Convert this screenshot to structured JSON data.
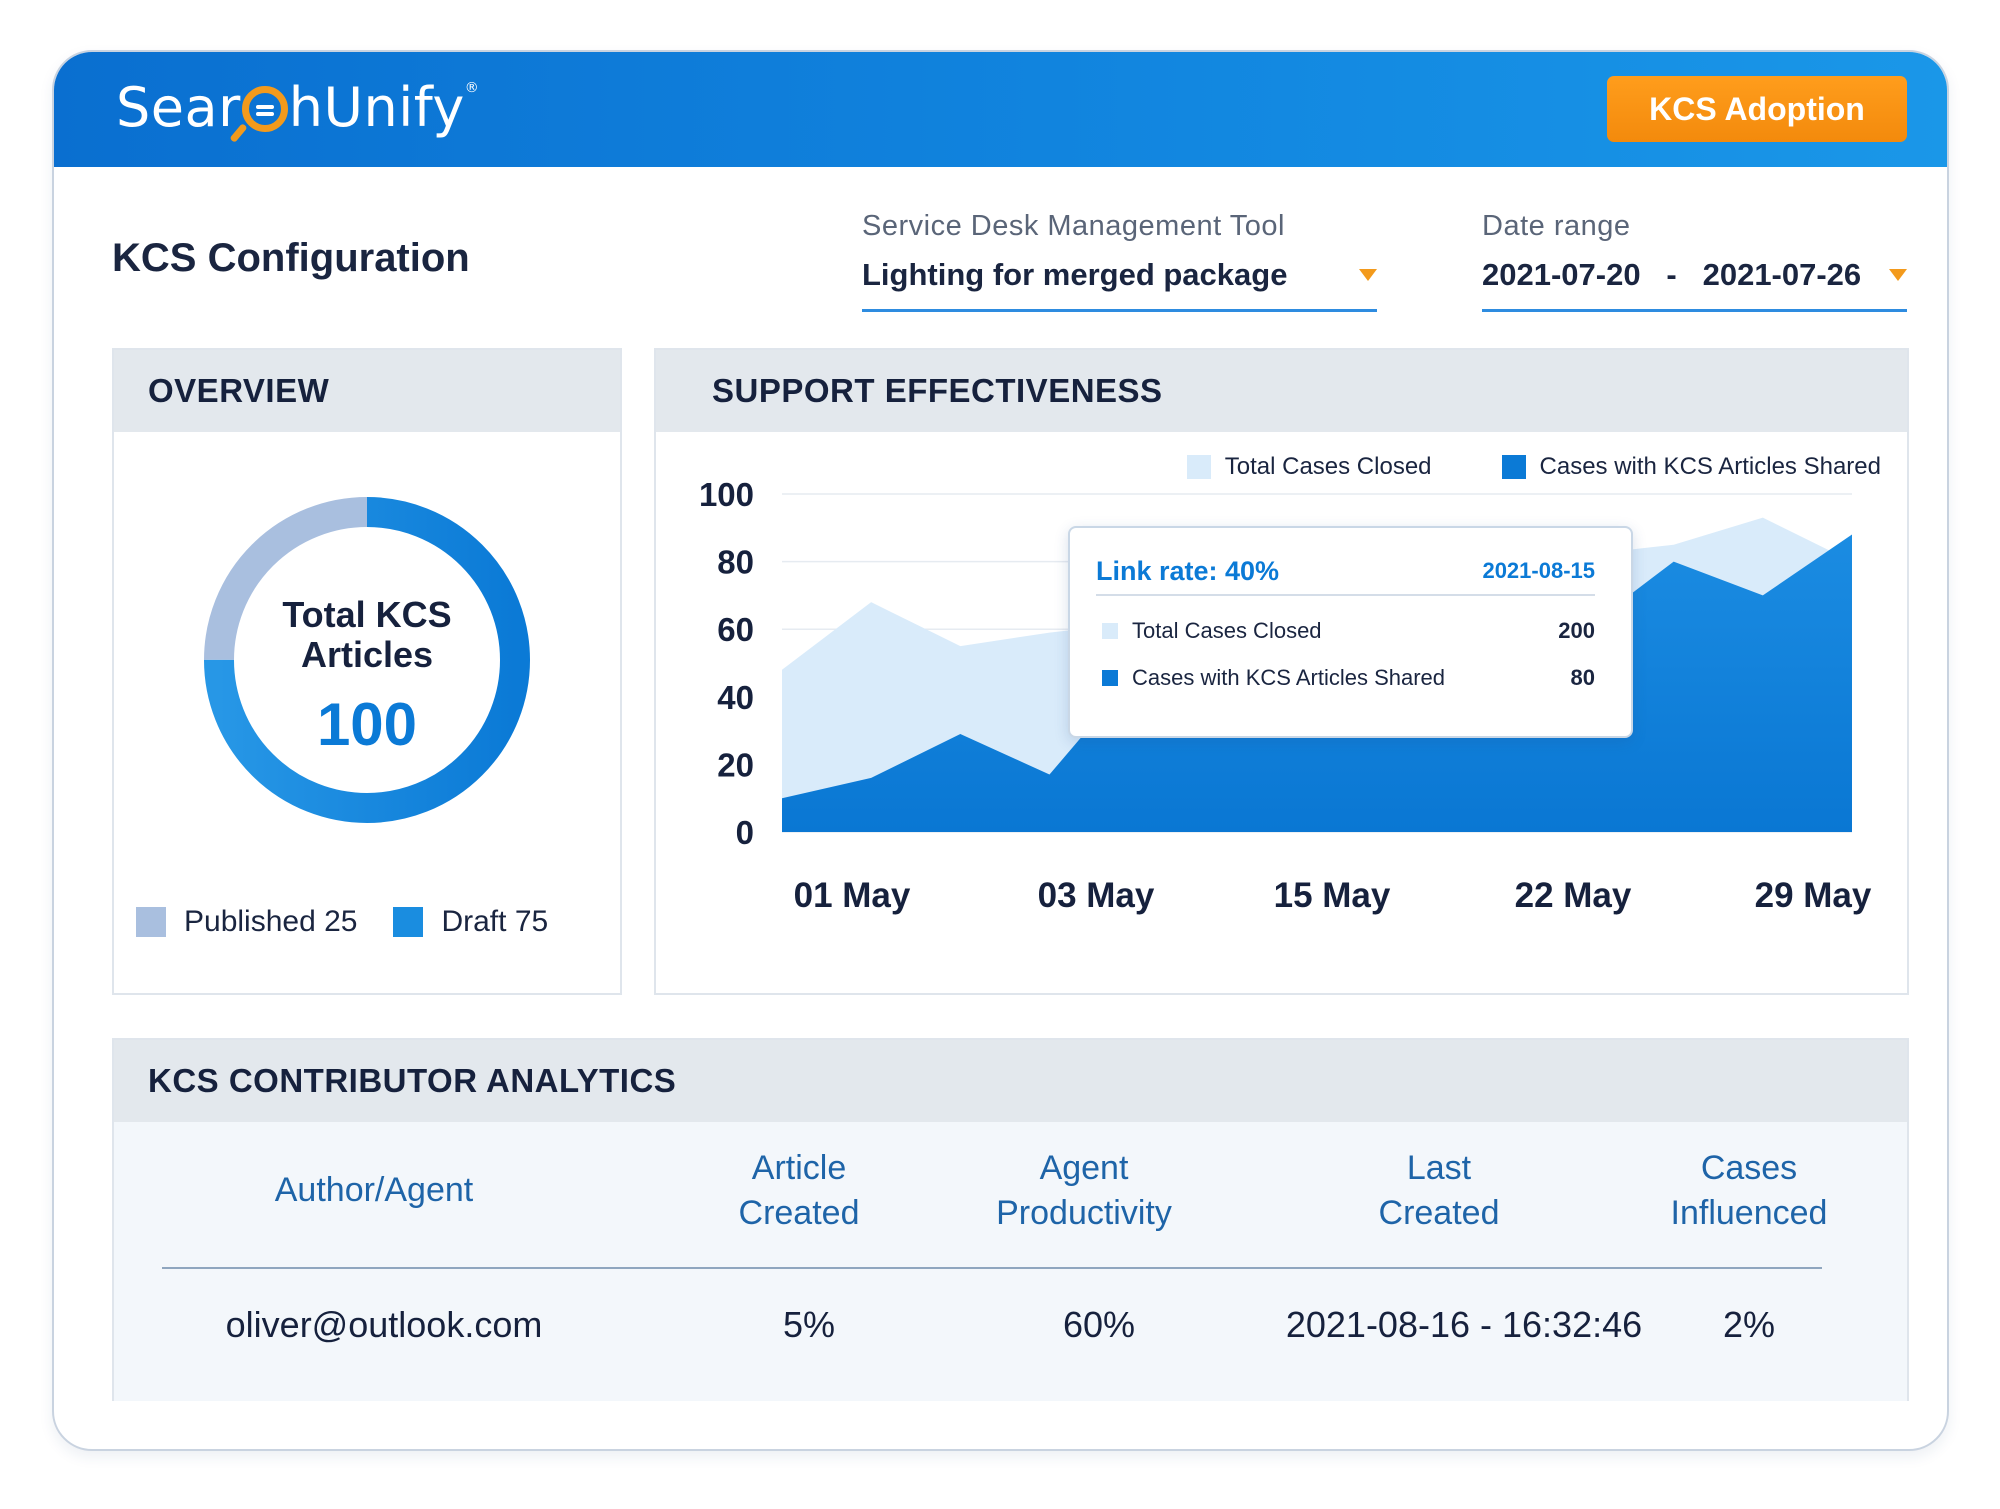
{
  "brand": {
    "name_prefix": "Sear",
    "name_suffix": "hUnify",
    "registered": "®"
  },
  "header": {
    "badge": "KCS Adoption"
  },
  "page": {
    "title": "KCS Configuration"
  },
  "filters": {
    "service_desk": {
      "label": "Service Desk Management Tool",
      "value": "Lighting for merged package"
    },
    "date_range": {
      "label": "Date range",
      "start": "2021-07-20",
      "separator": "-",
      "end": "2021-07-26"
    }
  },
  "overview": {
    "title": "OVERVIEW",
    "center_title_line1": "Total KCS",
    "center_title_line2": "Articles",
    "center_value": "100",
    "legend": {
      "published": "Published 25",
      "draft": "Draft 75"
    },
    "published": 25,
    "draft": 75,
    "colors": {
      "published": "#a9bfdf",
      "draft": "#1a8de0"
    }
  },
  "support": {
    "title": "SUPPORT EFFECTIVENESS",
    "legend": {
      "total": "Total Cases Closed",
      "kcs": "Cases with KCS Articles Shared"
    },
    "tooltip": {
      "title": "Link rate: 40%",
      "date": "2021-08-15",
      "rows": [
        {
          "label": "Total Cases Closed",
          "value": "200"
        },
        {
          "label": "Cases with KCS Articles Shared",
          "value": "80"
        }
      ]
    }
  },
  "chart_data": {
    "type": "area",
    "title": "",
    "xlabel": "",
    "ylabel": "",
    "ylim": [
      0,
      100
    ],
    "yticks": [
      "100",
      "80",
      "60",
      "40",
      "20",
      "0"
    ],
    "xtick_labels": [
      "01 May",
      "03 May",
      "15 May",
      "22 May",
      "29 May"
    ],
    "grid": true,
    "legend_position": "top-right",
    "series": [
      {
        "name": "Total Cases Closed",
        "color": "#d9ebfa",
        "x": [
          0,
          1,
          2,
          3,
          4,
          5,
          6,
          7,
          8,
          9,
          10,
          11,
          12
        ],
        "y": [
          48,
          68,
          55,
          59,
          62,
          66,
          64,
          70,
          72,
          82,
          85,
          93,
          80
        ]
      },
      {
        "name": "Cases with KCS Articles Shared",
        "color": "#0b7ad6",
        "x": [
          0,
          1,
          2,
          3,
          4,
          5,
          6,
          7,
          8,
          9,
          10,
          11,
          12
        ],
        "y": [
          10,
          16,
          29,
          17,
          48,
          50,
          52,
          54,
          56,
          60,
          80,
          70,
          88
        ]
      }
    ]
  },
  "contributors": {
    "title": "KCS CONTRIBUTOR ANALYTICS",
    "columns": [
      [
        "Author/Agent"
      ],
      [
        "Article",
        "Created"
      ],
      [
        "Agent",
        "Productivity"
      ],
      [
        "Last",
        "Created"
      ],
      [
        "Cases",
        "Influenced"
      ]
    ],
    "rows": [
      [
        "oliver@outlook.com",
        "5%",
        "60%",
        "2021-08-16 - 16:32:46",
        "2%"
      ]
    ]
  }
}
